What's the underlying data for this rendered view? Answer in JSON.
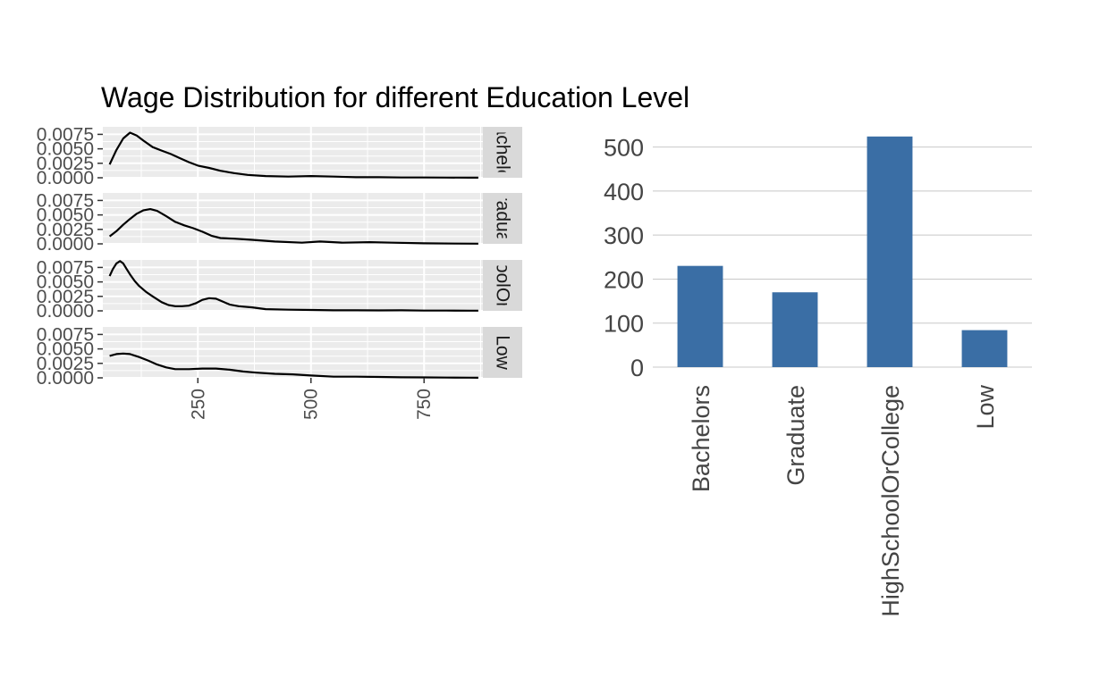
{
  "title": "Wage Distribution for different Education Level",
  "chart_data": [
    {
      "type": "line",
      "kind": "faceted-density",
      "title": "Wage Distribution for different Education Level",
      "xlim": [
        40,
        880
      ],
      "x_ticks": [
        250,
        500,
        750
      ],
      "ylim": [
        0,
        0.0088
      ],
      "y_ticks": [
        0.0,
        0.0025,
        0.005,
        0.0075
      ],
      "y_tick_labels": [
        "0.0000",
        "0.0025",
        "0.0050",
        "0.0075"
      ],
      "grid": true,
      "panels": [
        {
          "name": "Bachelors",
          "strip_label": "achelo",
          "x": [
            55,
            70,
            85,
            100,
            115,
            130,
            150,
            170,
            190,
            210,
            230,
            250,
            275,
            300,
            330,
            360,
            400,
            450,
            500,
            550,
            600,
            650,
            700,
            750,
            800,
            850,
            870
          ],
          "y": [
            0.0023,
            0.0048,
            0.0068,
            0.0078,
            0.0073,
            0.0064,
            0.0053,
            0.0047,
            0.0041,
            0.0034,
            0.0027,
            0.0021,
            0.0017,
            0.0012,
            0.0008,
            0.0005,
            0.0003,
            0.0002,
            0.0003,
            0.0002,
            0.0001,
            0.0001,
            5e-05,
            5e-05,
            3e-05,
            2e-05,
            2e-05
          ]
        },
        {
          "name": "Graduate",
          "strip_label": "radua",
          "x": [
            55,
            70,
            85,
            100,
            115,
            130,
            145,
            160,
            180,
            200,
            220,
            240,
            260,
            280,
            300,
            330,
            370,
            420,
            480,
            520,
            570,
            630,
            680,
            750,
            820,
            870
          ],
          "y": [
            0.0013,
            0.0022,
            0.0033,
            0.0043,
            0.0052,
            0.0058,
            0.006,
            0.0057,
            0.0048,
            0.0038,
            0.0032,
            0.0027,
            0.0021,
            0.0014,
            0.001,
            0.0009,
            0.0007,
            0.0004,
            0.0002,
            0.0004,
            0.0002,
            0.0003,
            0.0002,
            0.0001,
            5e-05,
            3e-05
          ]
        },
        {
          "name": "HighSchoolOrCollege",
          "strip_label": "oolOr",
          "x": [
            55,
            62,
            70,
            78,
            85,
            92,
            100,
            110,
            120,
            135,
            150,
            170,
            185,
            200,
            215,
            230,
            245,
            260,
            275,
            290,
            305,
            320,
            340,
            370,
            400,
            450,
            500,
            550,
            600,
            650,
            700,
            750,
            800,
            850,
            870
          ],
          "y": [
            0.006,
            0.0072,
            0.0082,
            0.0086,
            0.0082,
            0.0073,
            0.0063,
            0.0052,
            0.0043,
            0.0033,
            0.0025,
            0.0015,
            0.001,
            0.0008,
            0.0008,
            0.0009,
            0.0013,
            0.0019,
            0.0022,
            0.0021,
            0.0016,
            0.0011,
            0.0008,
            0.0006,
            0.0003,
            0.0002,
            0.00015,
            0.0001,
            0.0001,
            8e-05,
            0.0001,
            5e-05,
            4e-05,
            3e-05,
            3e-05
          ]
        },
        {
          "name": "Low",
          "strip_label": "Low",
          "x": [
            55,
            70,
            85,
            100,
            120,
            140,
            160,
            180,
            200,
            230,
            260,
            290,
            320,
            350,
            380,
            420,
            460,
            500,
            550,
            600,
            650,
            700,
            750,
            800,
            850,
            870
          ],
          "y": [
            0.0038,
            0.0041,
            0.0042,
            0.0041,
            0.0036,
            0.003,
            0.0023,
            0.0018,
            0.0015,
            0.0015,
            0.0016,
            0.0016,
            0.0014,
            0.0011,
            0.0009,
            0.0007,
            0.0006,
            0.0004,
            0.0002,
            0.0002,
            0.00015,
            0.0001,
            8e-05,
            5e-05,
            3e-05,
            2e-05
          ]
        }
      ]
    },
    {
      "type": "bar",
      "categories": [
        "Bachelors",
        "Graduate",
        "HighSchoolOrCollege",
        "Low"
      ],
      "values": [
        230,
        170,
        524,
        84
      ],
      "ylim": [
        0,
        550
      ],
      "y_ticks": [
        0,
        100,
        200,
        300,
        400,
        500
      ],
      "grid": true,
      "bar_color": "#3a6ea5"
    }
  ],
  "colors": {
    "panel_bg": "#ebebeb",
    "strip_bg": "#d9d9d9",
    "grid_major": "#ffffff",
    "density_line": "#000000",
    "bar_fill": "#3a6ea5",
    "bar_grid": "#c8c8c8"
  }
}
